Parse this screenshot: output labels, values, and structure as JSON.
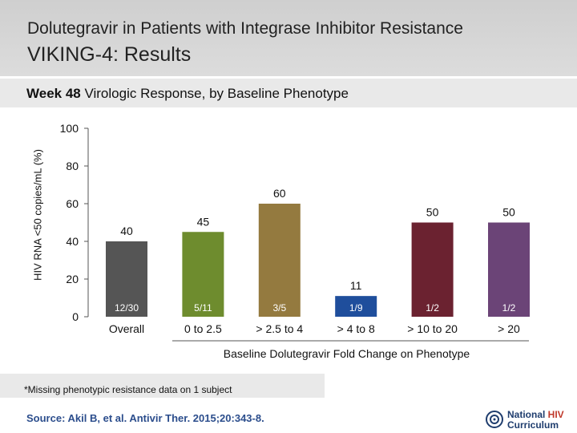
{
  "header": {
    "title_line1": "Dolutegravir in Patients with Integrase Inhibitor Resistance",
    "title_line2": "VIKING-4: Results"
  },
  "subtitle": {
    "bold": "Week 48",
    "rest": " Virologic Response, by Baseline Phenotype"
  },
  "footnote": "*Missing phenotypic resistance data on 1 subject",
  "source": "Source: Akil B, et al. Antivir Ther. 2015;20:343-8.",
  "logo": {
    "line1a": "National ",
    "line1b": "HIV",
    "line2": "Curriculum"
  },
  "colors": {
    "bars": [
      "#555555",
      "#6e8c2e",
      "#947a3f",
      "#1f4e9c",
      "#6b2230",
      "#6b4477"
    ]
  },
  "chart_data": {
    "type": "bar",
    "categories": [
      "Overall",
      "0 to 2.5",
      "> 2.5 to 4",
      "> 4 to 8",
      "> 10 to 20",
      "> 20"
    ],
    "values": [
      40,
      45,
      60,
      11,
      50,
      50
    ],
    "value_labels": [
      "40",
      "45",
      "60",
      "11",
      "50",
      "50"
    ],
    "fractions": [
      "12/30",
      "5/11",
      "3/5",
      "1/9",
      "1/2",
      "1/2"
    ],
    "ylabel": "HIV RNA <50 copies/mL (%)",
    "xlabel": "Baseline Dolutegravir Fold Change on Phenotype",
    "ylim": [
      0,
      100
    ],
    "yticks": [
      0,
      20,
      40,
      60,
      80,
      100
    ]
  }
}
